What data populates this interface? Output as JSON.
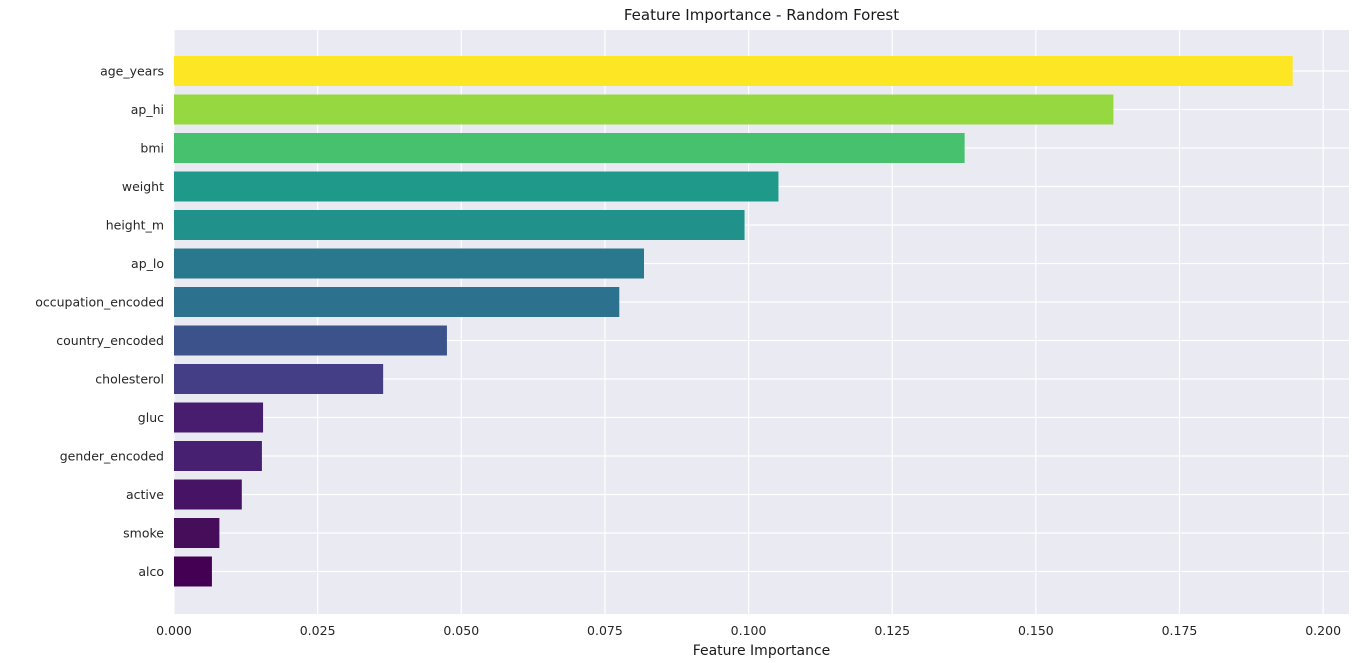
{
  "chart_data": {
    "type": "bar",
    "orientation": "horizontal",
    "title": "Feature Importance - Random Forest",
    "xlabel": "Feature Importance",
    "ylabel": "",
    "xlim": [
      0,
      0.2045
    ],
    "xticks": [
      "0.000",
      "0.025",
      "0.050",
      "0.075",
      "0.100",
      "0.125",
      "0.150",
      "0.175",
      "0.200"
    ],
    "grid": true,
    "categories": [
      "age_years",
      "ap_hi",
      "bmi",
      "weight",
      "height_m",
      "ap_lo",
      "occupation_encoded",
      "country_encoded",
      "cholesterol",
      "gluc",
      "gender_encoded",
      "active",
      "smoke",
      "alco"
    ],
    "values": [
      0.1947,
      0.1635,
      0.1376,
      0.1052,
      0.0993,
      0.0818,
      0.0775,
      0.0475,
      0.0364,
      0.0155,
      0.0153,
      0.0118,
      0.0079,
      0.0066
    ],
    "colors": [
      "#fde725",
      "#95d840",
      "#48c16e",
      "#1f9a8a",
      "#21918c",
      "#2a788e",
      "#2c728e",
      "#3b528b",
      "#433e85",
      "#481c6e",
      "#482071",
      "#471365",
      "#450d5a",
      "#440154"
    ]
  }
}
